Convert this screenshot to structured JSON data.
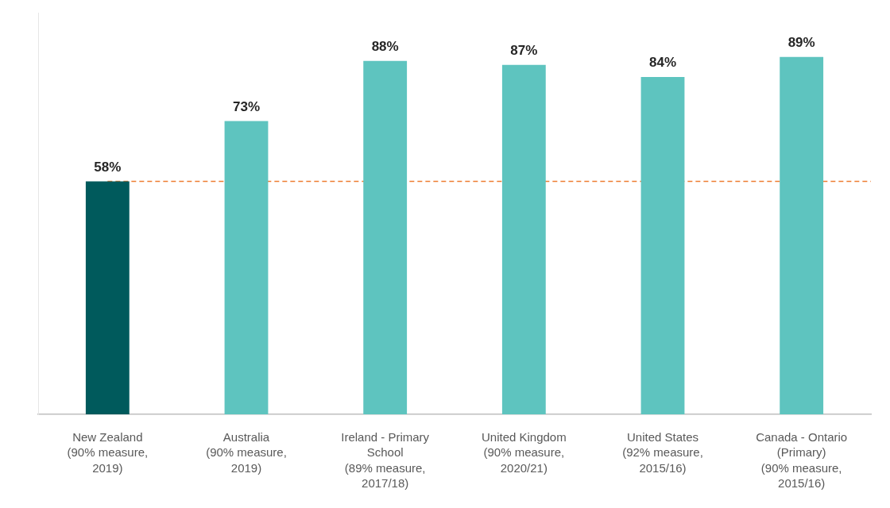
{
  "chart_data": {
    "type": "bar",
    "categories": [
      [
        "New Zealand",
        "(90% measure,",
        "2019)"
      ],
      [
        "Australia",
        "(90% measure,",
        "2019)"
      ],
      [
        "Ireland - Primary",
        "School",
        "(89% measure,",
        "2017/18)"
      ],
      [
        "United Kingdom",
        "(90% measure,",
        "2020/21)"
      ],
      [
        "United States",
        "(92% measure,",
        "2015/16)"
      ],
      [
        "Canada - Ontario",
        "(Primary)",
        "(90% measure,",
        "2015/16)"
      ]
    ],
    "values": [
      58,
      73,
      88,
      87,
      84,
      89
    ],
    "value_labels": [
      "58%",
      "73%",
      "88%",
      "87%",
      "84%",
      "89%"
    ],
    "colors": [
      "#005a5c",
      "#5ec4bf",
      "#5ec4bf",
      "#5ec4bf",
      "#5ec4bf",
      "#5ec4bf"
    ],
    "ylim": [
      0,
      100
    ],
    "grid": false,
    "tick_labels": "x",
    "data_labels": true,
    "legend": null,
    "reference_line": {
      "value": 58,
      "color": "#ed7d31",
      "line_style": "dashed"
    }
  }
}
